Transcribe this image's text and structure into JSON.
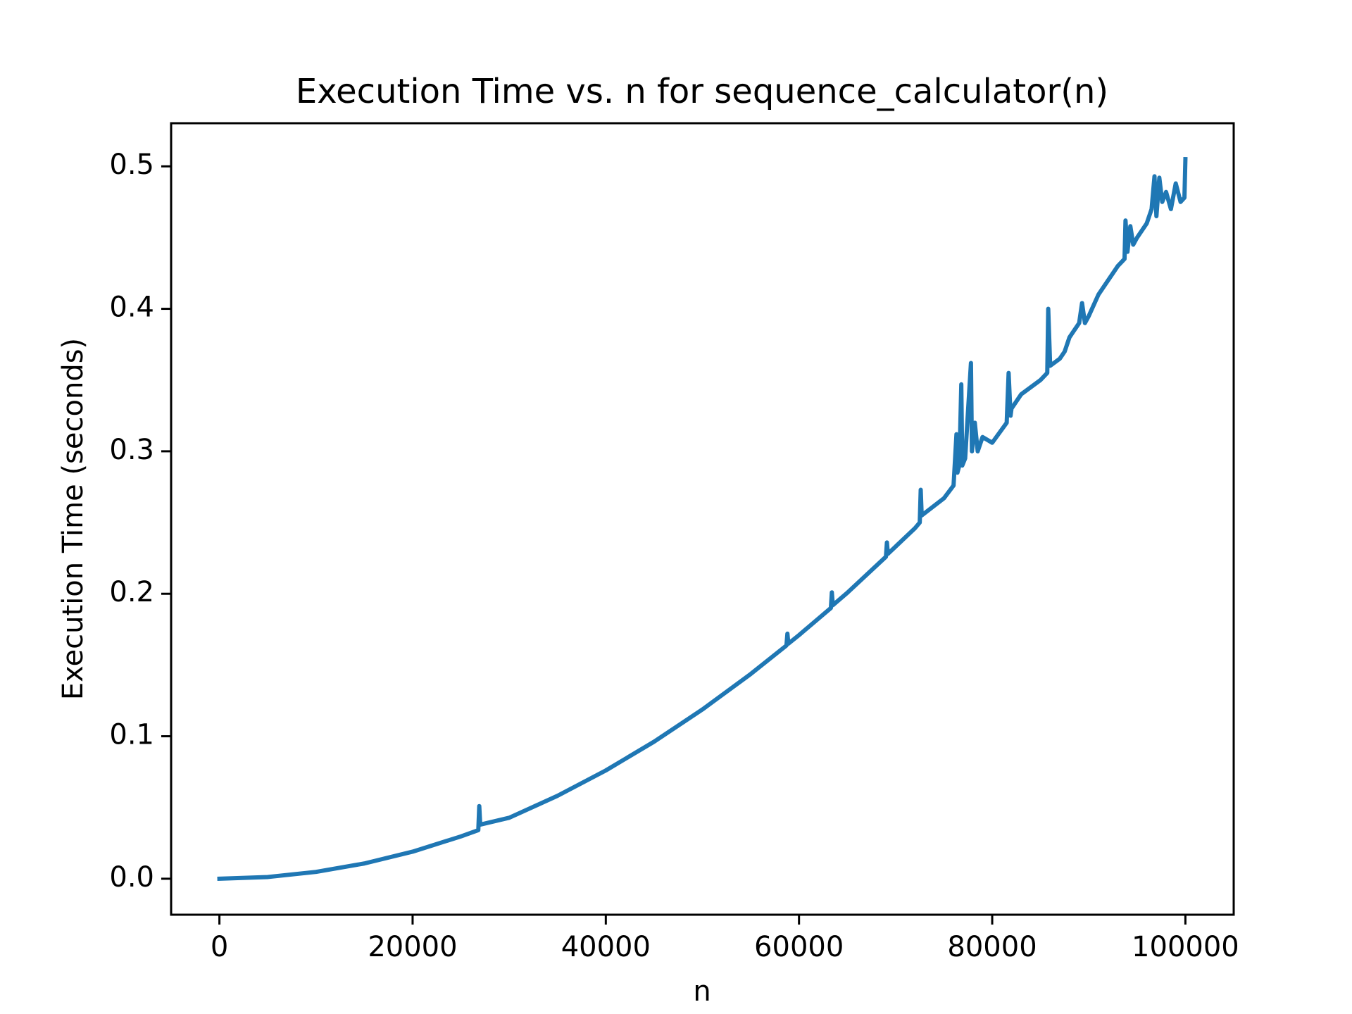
{
  "chart_data": {
    "type": "line",
    "title": "Execution Time vs. n for sequence_calculator(n)",
    "xlabel": "n",
    "ylabel": "Execution Time (seconds)",
    "x": [
      0,
      5000,
      10000,
      15000,
      20000,
      25000,
      26800,
      26900,
      27000,
      30000,
      35000,
      40000,
      45000,
      50000,
      55000,
      58700,
      58800,
      58900,
      60000,
      63300,
      63400,
      63500,
      65000,
      69000,
      69100,
      69200,
      72000,
      72500,
      72600,
      72700,
      75000,
      76000,
      76300,
      76400,
      76600,
      76800,
      76900,
      77200,
      77800,
      77900,
      78200,
      78500,
      79000,
      80000,
      81500,
      81700,
      81900,
      82000,
      83000,
      84000,
      85000,
      85700,
      85800,
      86000,
      87000,
      87500,
      88000,
      89000,
      89300,
      89600,
      90000,
      91000,
      92000,
      93000,
      93700,
      93800,
      94000,
      94300,
      94600,
      95000,
      95500,
      96000,
      96500,
      96800,
      97000,
      97300,
      97600,
      98000,
      98500,
      99000,
      99500,
      99900,
      100000
    ],
    "values": [
      0,
      0.0012,
      0.0048,
      0.0107,
      0.019,
      0.0297,
      0.0341,
      0.051,
      0.038,
      0.0428,
      0.0582,
      0.076,
      0.0962,
      0.1188,
      0.1437,
      0.1637,
      0.172,
      0.165,
      0.171,
      0.19,
      0.201,
      0.192,
      0.2007,
      0.226,
      0.236,
      0.228,
      0.246,
      0.25,
      0.273,
      0.255,
      0.267,
      0.276,
      0.312,
      0.285,
      0.29,
      0.347,
      0.29,
      0.295,
      0.362,
      0.3,
      0.32,
      0.3,
      0.31,
      0.306,
      0.32,
      0.355,
      0.325,
      0.33,
      0.34,
      0.345,
      0.35,
      0.355,
      0.4,
      0.36,
      0.365,
      0.37,
      0.38,
      0.39,
      0.404,
      0.39,
      0.395,
      0.41,
      0.42,
      0.43,
      0.435,
      0.462,
      0.44,
      0.458,
      0.445,
      0.45,
      0.455,
      0.46,
      0.47,
      0.493,
      0.465,
      0.492,
      0.475,
      0.482,
      0.47,
      0.488,
      0.475,
      0.478,
      0.505
    ],
    "color": "#1f77b4",
    "xlim": [
      -5000,
      105000
    ],
    "ylim": [
      -0.02525,
      0.53025
    ],
    "xticks": [
      0,
      20000,
      40000,
      60000,
      80000,
      100000
    ],
    "yticks": [
      {
        "value": 0,
        "label": "0.0"
      },
      0.1,
      0.2,
      0.3,
      0.4,
      0.5
    ]
  }
}
